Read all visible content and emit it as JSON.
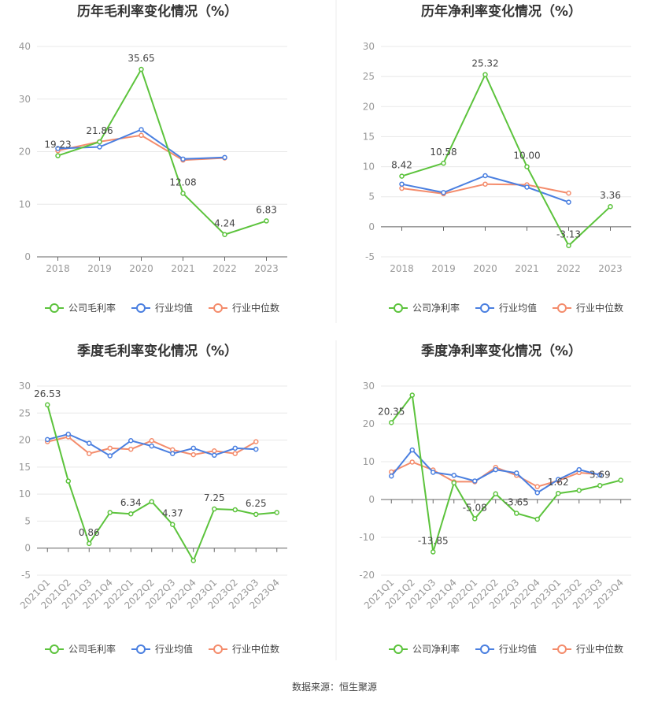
{
  "colors": {
    "company": "#5cc33c",
    "industry_avg": "#4a7fe0",
    "industry_median": "#f48c6c",
    "grid": "#e8e8e8",
    "axis": "#666666"
  },
  "source": "数据来源：恒生聚源",
  "chart_data": [
    {
      "type": "line",
      "title": "历年毛利率变化情况（%）",
      "categories": [
        "2018",
        "2019",
        "2020",
        "2021",
        "2022",
        "2023"
      ],
      "ylim": [
        0,
        40
      ],
      "yticks": [
        0,
        10,
        20,
        30,
        40
      ],
      "grid": true,
      "legend_position": "bottom",
      "series": [
        {
          "name": "公司毛利率",
          "values": [
            19.23,
            21.86,
            35.65,
            12.08,
            4.24,
            6.83
          ],
          "labels": [
            "19.23",
            "21.86",
            "35.65",
            "12.08",
            "4.24",
            "6.83"
          ]
        },
        {
          "name": "行业均值",
          "values": [
            20.6,
            20.9,
            24.2,
            18.6,
            18.9,
            null
          ]
        },
        {
          "name": "行业中位数",
          "values": [
            20.2,
            21.9,
            23.1,
            18.4,
            18.8,
            null
          ]
        }
      ]
    },
    {
      "type": "line",
      "title": "历年净利率变化情况（%）",
      "categories": [
        "2018",
        "2019",
        "2020",
        "2021",
        "2022",
        "2023"
      ],
      "ylim": [
        -5,
        30
      ],
      "yticks": [
        -5,
        0,
        5,
        10,
        15,
        20,
        25,
        30
      ],
      "grid": true,
      "legend_position": "bottom",
      "series": [
        {
          "name": "公司净利率",
          "values": [
            8.42,
            10.58,
            25.32,
            10.0,
            -3.13,
            3.36
          ],
          "labels": [
            "8.42",
            "10.58",
            "25.32",
            "10.00",
            "-3.13",
            "3.36"
          ]
        },
        {
          "name": "行业均值",
          "values": [
            7.1,
            5.7,
            8.5,
            6.6,
            4.1,
            null
          ]
        },
        {
          "name": "行业中位数",
          "values": [
            6.4,
            5.5,
            7.1,
            7.0,
            5.6,
            null
          ]
        }
      ]
    },
    {
      "type": "line",
      "title": "季度毛利率变化情况（%）",
      "categories": [
        "2021Q1",
        "2021Q2",
        "2021Q3",
        "2021Q4",
        "2022Q1",
        "2022Q2",
        "2022Q3",
        "2022Q4",
        "2023Q1",
        "2023Q2",
        "2023Q3",
        "2023Q4"
      ],
      "ylim": [
        -5,
        30
      ],
      "yticks": [
        -5,
        0,
        5,
        10,
        15,
        20,
        25,
        30
      ],
      "grid": true,
      "legend_position": "bottom",
      "series": [
        {
          "name": "公司毛利率",
          "values": [
            26.53,
            12.4,
            0.86,
            6.6,
            6.34,
            8.6,
            4.37,
            -2.3,
            7.25,
            7.1,
            6.25,
            6.6
          ],
          "labels": [
            "26.53",
            "",
            "0.86",
            "",
            "6.34",
            "",
            "4.37",
            "",
            "7.25",
            "",
            "6.25",
            ""
          ]
        },
        {
          "name": "行业均值",
          "values": [
            20.1,
            21.1,
            19.4,
            17.1,
            19.9,
            18.9,
            17.5,
            18.5,
            17.2,
            18.5,
            18.3,
            null
          ]
        },
        {
          "name": "行业中位数",
          "values": [
            19.7,
            20.6,
            17.5,
            18.5,
            18.3,
            19.9,
            18.2,
            17.3,
            18.0,
            17.5,
            19.7,
            null
          ]
        }
      ]
    },
    {
      "type": "line",
      "title": "季度净利率变化情况（%）",
      "categories": [
        "2021Q1",
        "2021Q2",
        "2021Q3",
        "2021Q4",
        "2022Q1",
        "2022Q2",
        "2022Q3",
        "2022Q4",
        "2023Q1",
        "2023Q2",
        "2023Q3",
        "2023Q4"
      ],
      "ylim": [
        -20,
        30
      ],
      "yticks": [
        -20,
        -10,
        0,
        10,
        20,
        30
      ],
      "grid": true,
      "legend_position": "bottom",
      "series": [
        {
          "name": "公司净利率",
          "values": [
            20.35,
            27.6,
            -13.85,
            4.4,
            -5.08,
            1.5,
            -3.65,
            -5.2,
            1.62,
            2.4,
            3.69,
            5.1
          ],
          "labels": [
            "20.35",
            "",
            "-13.85",
            "",
            "-5.08",
            "",
            "-3.65",
            "",
            "1.62",
            "",
            "3.69",
            ""
          ]
        },
        {
          "name": "行业均值",
          "values": [
            6.2,
            13.1,
            7.2,
            6.4,
            4.9,
            7.9,
            7.0,
            1.8,
            5.3,
            7.9,
            6.5,
            null
          ]
        },
        {
          "name": "行业中位数",
          "values": [
            7.3,
            9.9,
            7.8,
            4.7,
            4.7,
            8.5,
            6.4,
            3.4,
            5.0,
            7.1,
            6.6,
            null
          ]
        }
      ]
    }
  ]
}
